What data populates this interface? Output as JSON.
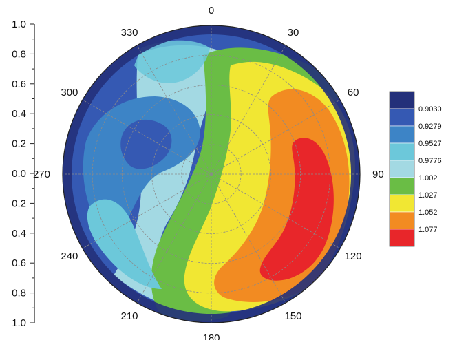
{
  "chart_data": {
    "type": "heatmap",
    "subtype": "polar-contour",
    "title": "",
    "grid": true,
    "legend_placement": "right",
    "angular_ticks": [
      "0",
      "30",
      "60",
      "90",
      "120",
      "150",
      "180",
      "210",
      "240",
      "270",
      "300",
      "330"
    ],
    "radial_ticks": [
      "1.0",
      "0.8",
      "0.6",
      "0.4",
      "0.2",
      "0.0",
      "0.2",
      "0.4",
      "0.6",
      "0.8",
      "1.0"
    ],
    "radial_range": [
      0,
      1.0
    ],
    "angular_range": [
      0,
      360
    ],
    "levels": [
      {
        "label": "0.9030",
        "color": "#24307a"
      },
      {
        "label": "0.9279",
        "color": "#3559b3"
      },
      {
        "label": "0.9527",
        "color": "#3d84c6"
      },
      {
        "label": "0.9776",
        "color": "#6cc8da"
      },
      {
        "label": "1.002",
        "color": "#a3d9e3"
      },
      {
        "label": "1.027",
        "color": "#6abd45"
      },
      {
        "label": "1.052",
        "color": "#f1e733"
      },
      {
        "label": "1.077",
        "color": "#f28b22"
      },
      {
        "label": "",
        "color": "#e8262a"
      }
    ],
    "contour_regions": [
      {
        "level": 0,
        "theta": [
          0,
          30,
          60,
          90,
          120,
          150,
          180,
          210,
          240,
          270,
          300,
          330
        ],
        "r_inner": [
          0.97,
          0.98,
          0.98,
          0.98,
          0.97,
          0.96,
          0.94,
          0.9,
          0.86,
          0.88,
          0.94,
          0.96
        ]
      },
      {
        "level": 2,
        "description": "low region centred near theta 305, r 0.45"
      },
      {
        "level": 1,
        "description": "minimum region centred near theta 300, r 0.42"
      },
      {
        "level": 8,
        "description": "maximum region centred near theta 125, r 0.72"
      }
    ]
  }
}
